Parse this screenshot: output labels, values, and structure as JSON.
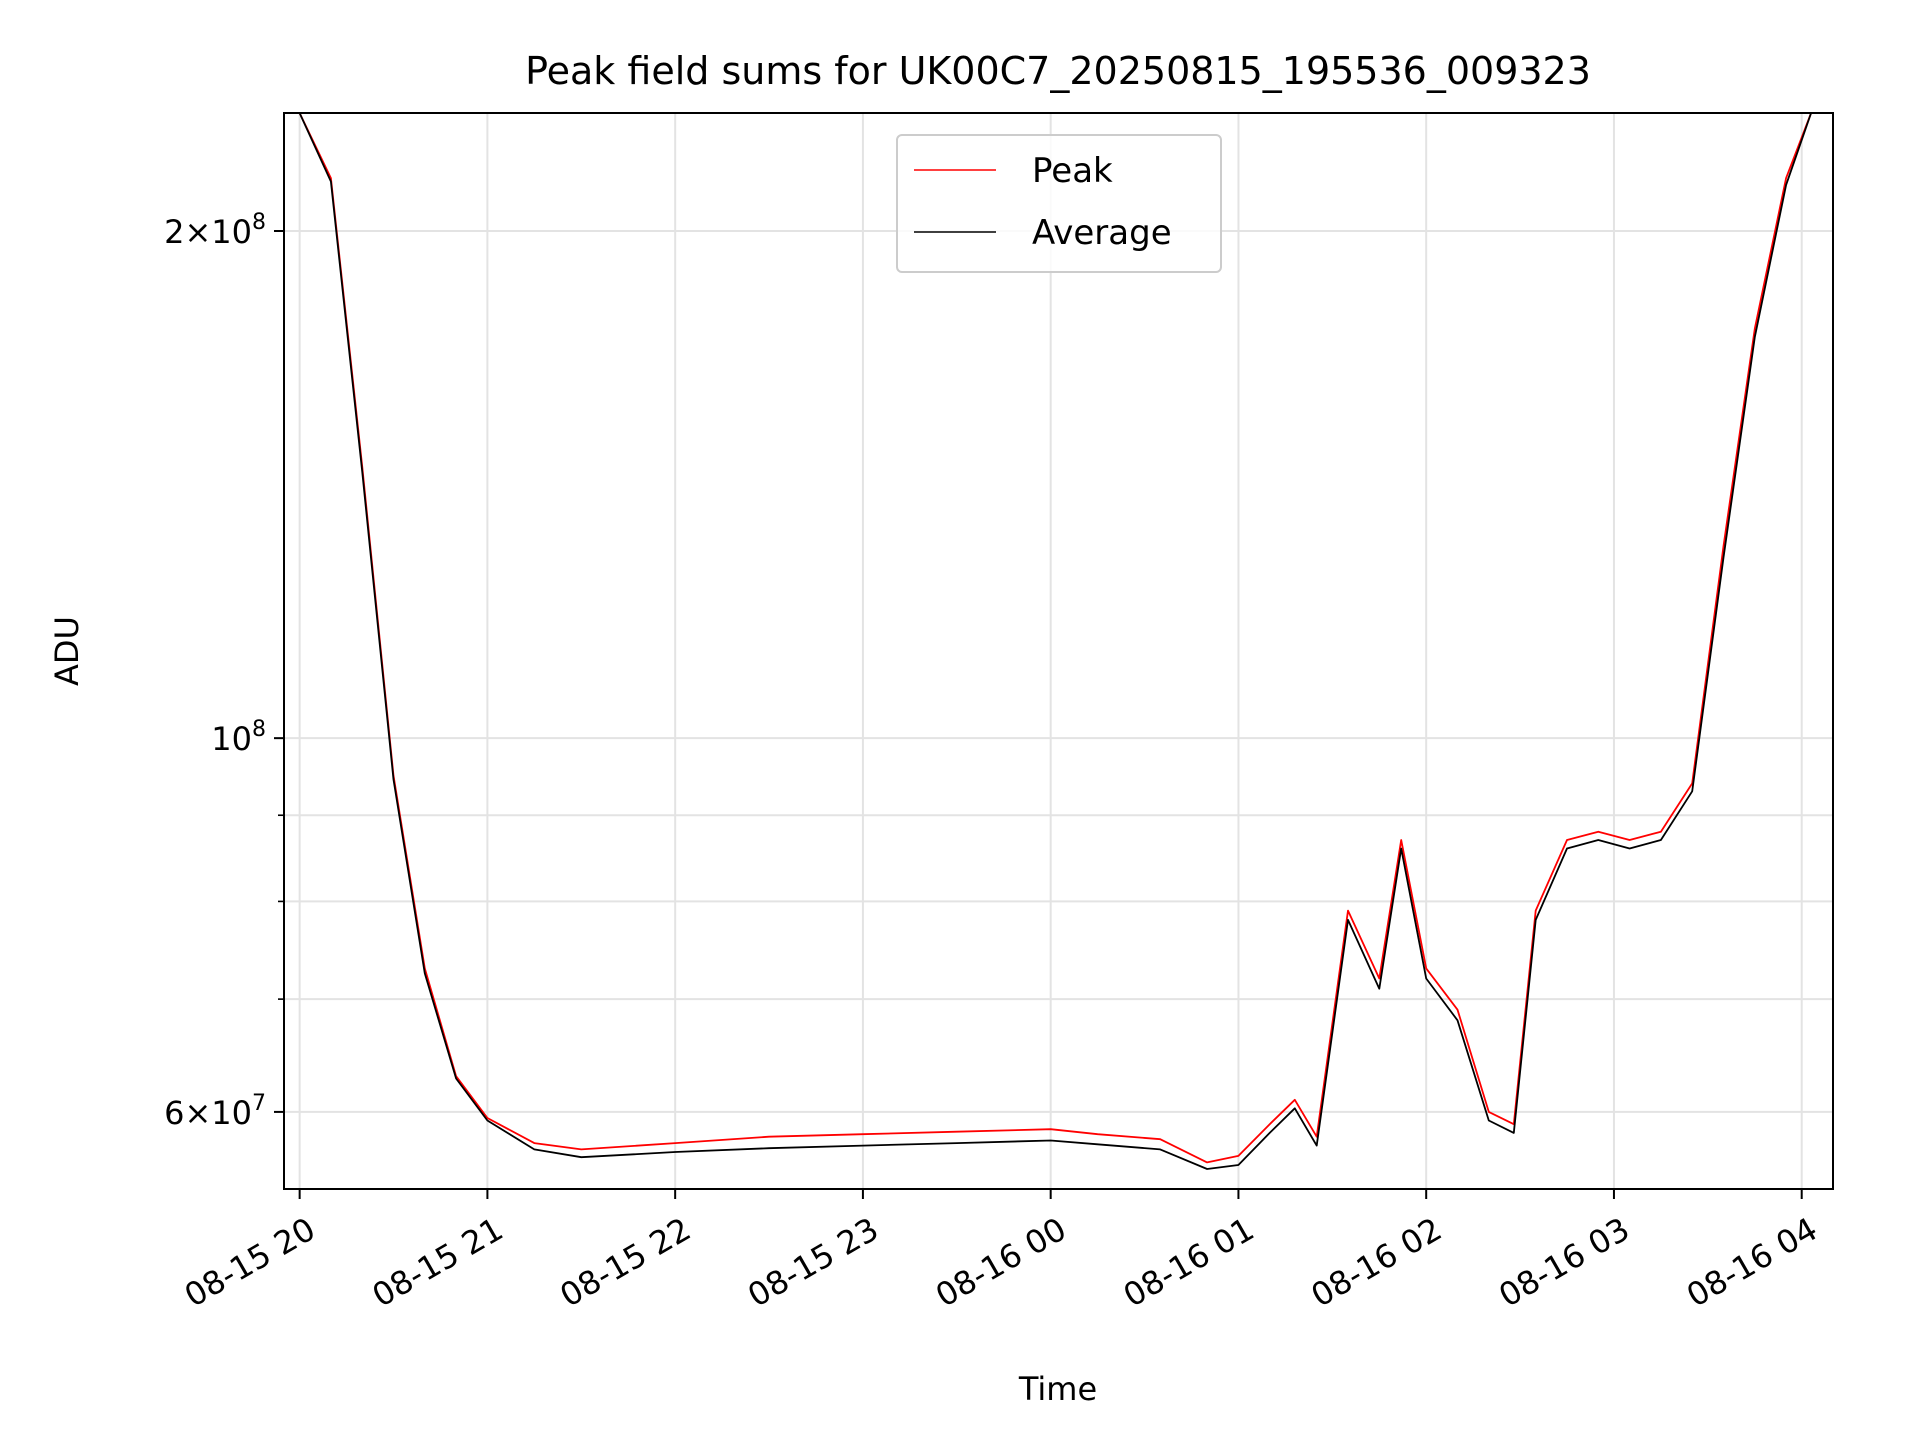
{
  "chart_data": {
    "type": "line",
    "title": "Peak field sums for UK00C7_20250815_195536_009323",
    "xlabel": "Time",
    "ylabel": "ADU",
    "y_scale": "log",
    "ylim": [
      54000000,
      235000000
    ],
    "xlim": [
      "2025-08-15 19:55",
      "2025-08-16 04:10"
    ],
    "x_ticks": [
      "2025-08-15 20:00",
      "2025-08-15 21:00",
      "2025-08-15 22:00",
      "2025-08-15 23:00",
      "2025-08-16 00:00",
      "2025-08-16 01:00",
      "2025-08-16 02:00",
      "2025-08-16 03:00",
      "2025-08-16 04:00"
    ],
    "x_tick_labels": [
      "08-15 20",
      "08-15 21",
      "08-15 22",
      "08-15 23",
      "08-16 00",
      "08-16 01",
      "08-16 02",
      "08-16 03",
      "08-16 04"
    ],
    "y_major_ticks": [
      {
        "value": 60000000,
        "mantissa": "6",
        "exponent": "7"
      },
      {
        "value": 100000000,
        "mantissa": "",
        "exponent": "8"
      },
      {
        "value": 200000000,
        "mantissa": "2",
        "exponent": "8"
      }
    ],
    "y_minor_ticks": [
      70000000,
      80000000,
      90000000
    ],
    "grid": true,
    "legend": {
      "position": "upper center"
    },
    "series": [
      {
        "name": "Peak",
        "color": "#ff0000",
        "x": [
          "2025-08-15 19:55",
          "2025-08-15 20:00",
          "2025-08-15 20:10",
          "2025-08-15 20:20",
          "2025-08-15 20:30",
          "2025-08-15 20:40",
          "2025-08-15 20:50",
          "2025-08-15 21:00",
          "2025-08-15 21:15",
          "2025-08-15 21:30",
          "2025-08-15 22:00",
          "2025-08-15 22:30",
          "2025-08-15 23:00",
          "2025-08-15 23:30",
          "2025-08-16 00:00",
          "2025-08-16 00:15",
          "2025-08-16 00:35",
          "2025-08-16 00:50",
          "2025-08-16 01:00",
          "2025-08-16 01:10",
          "2025-08-16 01:18",
          "2025-08-16 01:25",
          "2025-08-16 01:35",
          "2025-08-16 01:45",
          "2025-08-16 01:52",
          "2025-08-16 02:00",
          "2025-08-16 02:10",
          "2025-08-16 02:20",
          "2025-08-16 02:28",
          "2025-08-16 02:35",
          "2025-08-16 02:45",
          "2025-08-16 02:55",
          "2025-08-16 03:05",
          "2025-08-16 03:15",
          "2025-08-16 03:25",
          "2025-08-16 03:35",
          "2025-08-16 03:45",
          "2025-08-16 03:55",
          "2025-08-16 04:03"
        ],
        "y": [
          235000000,
          235000000,
          215000000,
          145000000,
          95000000,
          73000000,
          63000000,
          59500000,
          57500000,
          57000000,
          57500000,
          58000000,
          58200000,
          58400000,
          58600000,
          58200000,
          57800000,
          56000000,
          56500000,
          59000000,
          61000000,
          58000000,
          79000000,
          72000000,
          87000000,
          73000000,
          69000000,
          60000000,
          59000000,
          79000000,
          87000000,
          88000000,
          87000000,
          88000000,
          94000000,
          130000000,
          175000000,
          215000000,
          235000000
        ]
      },
      {
        "name": "Average",
        "color": "#000000",
        "x": [
          "2025-08-15 19:55",
          "2025-08-15 20:00",
          "2025-08-15 20:10",
          "2025-08-15 20:20",
          "2025-08-15 20:30",
          "2025-08-15 20:40",
          "2025-08-15 20:50",
          "2025-08-15 21:00",
          "2025-08-15 21:15",
          "2025-08-15 21:30",
          "2025-08-15 22:00",
          "2025-08-15 22:30",
          "2025-08-15 23:00",
          "2025-08-15 23:30",
          "2025-08-16 00:00",
          "2025-08-16 00:15",
          "2025-08-16 00:35",
          "2025-08-16 00:50",
          "2025-08-16 01:00",
          "2025-08-16 01:10",
          "2025-08-16 01:18",
          "2025-08-16 01:25",
          "2025-08-16 01:35",
          "2025-08-16 01:45",
          "2025-08-16 01:52",
          "2025-08-16 02:00",
          "2025-08-16 02:10",
          "2025-08-16 02:20",
          "2025-08-16 02:28",
          "2025-08-16 02:35",
          "2025-08-16 02:45",
          "2025-08-16 02:55",
          "2025-08-16 03:05",
          "2025-08-16 03:15",
          "2025-08-16 03:25",
          "2025-08-16 03:35",
          "2025-08-16 03:45",
          "2025-08-16 03:55",
          "2025-08-16 04:03"
        ],
        "y": [
          235000000,
          235000000,
          214000000,
          144000000,
          94500000,
          72500000,
          62800000,
          59300000,
          57000000,
          56400000,
          56800000,
          57100000,
          57300000,
          57500000,
          57700000,
          57400000,
          57000000,
          55500000,
          55800000,
          58300000,
          60300000,
          57300000,
          78000000,
          71000000,
          86000000,
          72000000,
          68000000,
          59300000,
          58300000,
          78000000,
          86000000,
          87000000,
          86000000,
          87000000,
          93000000,
          128000000,
          173000000,
          213000000,
          235000000
        ]
      }
    ]
  }
}
